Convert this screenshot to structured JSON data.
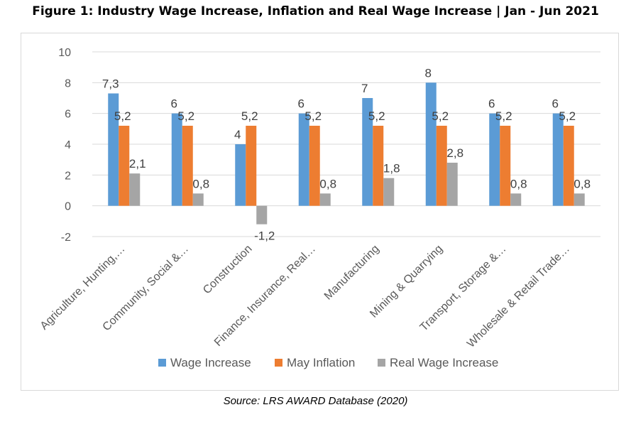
{
  "figure_title": "Figure 1: Industry Wage Increase, Inflation and Real Wage Increase | Jan - Jun 2021",
  "source_note": "Source: LRS AWARD Database (2020)",
  "chart_data": {
    "type": "bar",
    "categories": [
      "Agriculture, Hunting,…",
      "Community, Social &…",
      "Construction",
      "Finance, Insurance, Real…",
      "Manufacturing",
      "Mining & Quarrying",
      "Transport, Storage &…",
      "Wholesale & Retail Trade…"
    ],
    "series": [
      {
        "name": "Wage Increase",
        "color": "#5b9bd5",
        "values": [
          7.3,
          6,
          4,
          6,
          7,
          8,
          6,
          6
        ],
        "labels": [
          "7,3",
          "6",
          "4",
          "6",
          "7",
          "8",
          "6",
          "6"
        ]
      },
      {
        "name": "May Inflation",
        "color": "#ed7d31",
        "values": [
          5.2,
          5.2,
          5.2,
          5.2,
          5.2,
          5.2,
          5.2,
          5.2
        ],
        "labels": [
          "5,2",
          "5,2",
          "5,2",
          "5,2",
          "5,2",
          "5,2",
          "5,2",
          "5,2"
        ]
      },
      {
        "name": "Real Wage Increase",
        "color": "#a5a5a5",
        "values": [
          2.1,
          0.8,
          -1.2,
          0.8,
          1.8,
          2.8,
          0.8,
          0.8
        ],
        "labels": [
          "2,1",
          "0,8",
          "-1,2",
          "0,8",
          "1,8",
          "2,8",
          "0,8",
          "0,8"
        ]
      }
    ],
    "ylim": [
      -2,
      10
    ],
    "yticks": [
      -2,
      0,
      2,
      4,
      6,
      8,
      10
    ],
    "grid": true,
    "legend": "bottom"
  }
}
